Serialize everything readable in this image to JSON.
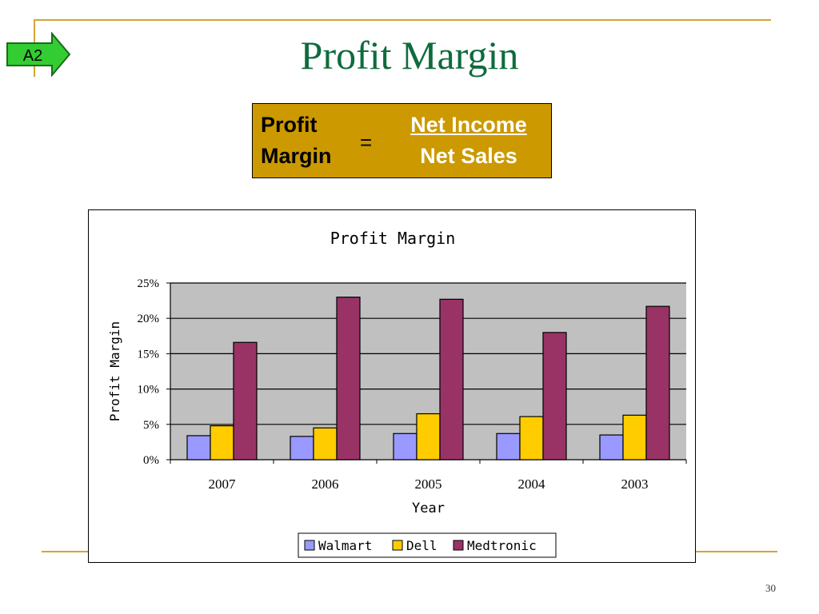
{
  "slide": {
    "title": "Profit Margin",
    "tag": "A2",
    "page_number": "30",
    "accent_color": "#d4a437",
    "title_color": "#0e6b3d"
  },
  "formula": {
    "left_line1": "Profit",
    "left_line2": "Margin",
    "equals": "=",
    "numerator": "Net Income",
    "denominator": "Net Sales",
    "box_color": "#cc9900"
  },
  "chart_data": {
    "type": "bar",
    "title": "Profit Margin",
    "xlabel": "Year",
    "ylabel": "Profit Margin",
    "categories": [
      "2007",
      "2006",
      "2005",
      "2004",
      "2003"
    ],
    "series": [
      {
        "name": "Walmart",
        "color": "#9999ff",
        "values": [
          3.4,
          3.3,
          3.7,
          3.7,
          3.5
        ]
      },
      {
        "name": "Dell",
        "color": "#ffcc00",
        "values": [
          4.8,
          4.5,
          6.5,
          6.1,
          6.3
        ]
      },
      {
        "name": "Medtronic",
        "color": "#993366",
        "values": [
          16.6,
          23.0,
          22.7,
          18.0,
          21.7
        ]
      }
    ],
    "ylim": [
      0,
      25
    ],
    "yticks": [
      "0%",
      "5%",
      "10%",
      "15%",
      "20%",
      "25%"
    ],
    "grid": true,
    "plot_background": "#c0c0c0",
    "legend": "bottom"
  }
}
